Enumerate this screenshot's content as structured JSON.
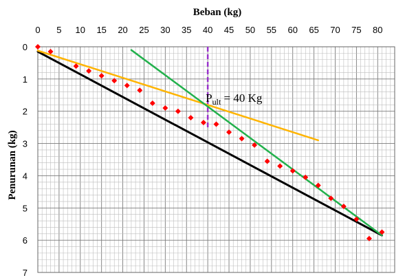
{
  "chart_data": {
    "type": "scatter",
    "xlabel": "Beban (kg)",
    "ylabel": "Penurunan (kg)",
    "xlim": [
      0,
      84
    ],
    "ylim": [
      0,
      7
    ],
    "x_axis_position": "top",
    "y_axis_inverted": true,
    "grid": true,
    "x_ticks": [
      0,
      5,
      10,
      15,
      20,
      25,
      30,
      35,
      40,
      45,
      50,
      55,
      60,
      65,
      70,
      75,
      80
    ],
    "y_ticks": [
      0,
      1,
      2,
      3,
      4,
      5,
      6,
      7
    ],
    "points": {
      "color": "#ff0000",
      "x": [
        0,
        3,
        9,
        12,
        15,
        18,
        21,
        24,
        27,
        30,
        33,
        36,
        39,
        42,
        45,
        48,
        51,
        54,
        57,
        60,
        63,
        66,
        69,
        72,
        75,
        78,
        81
      ],
      "y": [
        0,
        0.15,
        0.6,
        0.75,
        0.9,
        1.05,
        1.2,
        1.35,
        1.75,
        1.9,
        2.0,
        2.2,
        2.35,
        2.4,
        2.65,
        2.85,
        3.05,
        3.55,
        3.7,
        3.85,
        4.05,
        4.3,
        4.7,
        4.95,
        5.35,
        5.95,
        5.75
      ]
    },
    "lines": [
      {
        "color": "#000000",
        "x": [
          0,
          81
        ],
        "y": [
          0.15,
          5.85
        ]
      },
      {
        "color": "#ffb400",
        "x": [
          0,
          66
        ],
        "y": [
          0.12,
          2.9
        ]
      },
      {
        "color": "#22b14c",
        "x": [
          22,
          81
        ],
        "y": [
          0.1,
          5.85
        ]
      }
    ],
    "marker_line": {
      "color": "#9932cc",
      "x": 40,
      "style": "dashed"
    },
    "annotation": {
      "text": "Pult = 40 Kg",
      "main": "P",
      "sub": "ult",
      "rest": " = 40 Kg",
      "x": 40,
      "y": 1.6
    }
  }
}
